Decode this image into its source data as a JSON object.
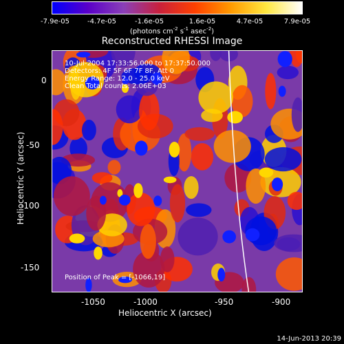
{
  "colorbar": {
    "ticks": [
      "-7.9e-05",
      "-4.7e-05",
      "-1.6e-05",
      "1.6e-05",
      "4.7e-05",
      "7.9e-05"
    ],
    "unit_main": "(photons cm",
    "unit_exp1": "-2",
    "unit_mid": " s",
    "unit_exp2": "-1",
    "unit_end": " asec",
    "unit_exp3": "-2",
    "unit_close": ")"
  },
  "title": "Reconstructed RHESSI Image",
  "info": {
    "time_range": "10-Jul-2004 17:33:56.000 to 17:37:50.000",
    "detectors": "Detectors: 4F 5F 6F 7F 8F, Att 0",
    "energy": "Energy Range: 12.0 - 25.0 keV",
    "clean": "Clean    Total counts: 2.06E+03",
    "peak": "Position of Peak = [-1066,19]"
  },
  "axes": {
    "xlabel": "Heliocentric X (arcsec)",
    "ylabel": "Heliocentric Y (arcsec)",
    "xticks": [
      "-1050",
      "-1000",
      "-950",
      "-900"
    ],
    "yticks": [
      "0",
      "-50",
      "-100",
      "-150"
    ]
  },
  "footer": "14-Jun-2013 20:39",
  "colors": {
    "background": "#000000",
    "colorbar_stops": [
      "#0000ff",
      "#5a00c8",
      "#8a3fb8",
      "#c8203c",
      "#ff4000",
      "#ff9a00",
      "#ffe840",
      "#ffffff"
    ],
    "limb": "#ffffff"
  }
}
